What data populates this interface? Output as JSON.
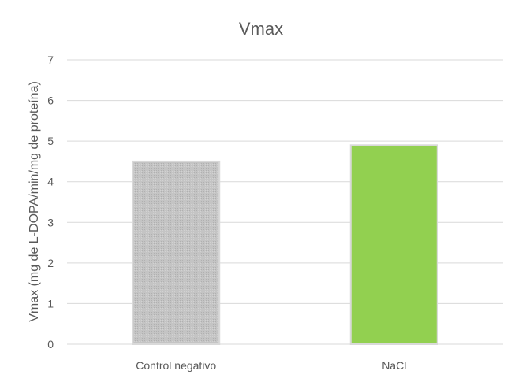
{
  "chart_data": {
    "type": "bar",
    "title": "Vmax",
    "xlabel": "",
    "ylabel": "Vmax (mg de L-DOPA/min/mg de proteína)",
    "categories": [
      "Control negativo",
      "NaCl"
    ],
    "values": [
      4.5,
      4.9
    ],
    "ylim": [
      0,
      7
    ],
    "yticks": [
      0,
      1,
      2,
      3,
      4,
      5,
      6,
      7
    ],
    "grid": true,
    "legend": "none",
    "colors": [
      "#c0c0c0",
      "#92d050"
    ],
    "bar_edge_colors": [
      "#d9d9d9",
      "#d9d9d9"
    ]
  }
}
